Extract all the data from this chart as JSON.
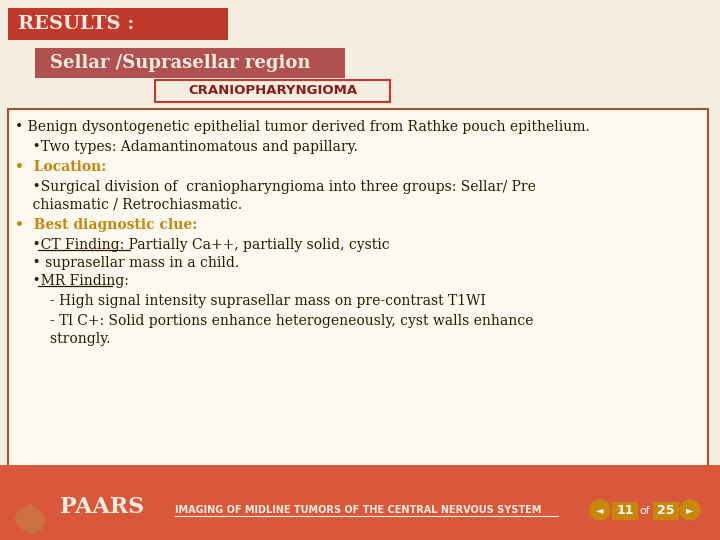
{
  "bg_color": "#f5ede0",
  "footer_color": "#d9573a",
  "title_bar_color": "#c0392b",
  "title_bar_text": "RESULTS :",
  "title_bar_text_color": "#f5ede0",
  "subtitle_bar_color": "#b05050",
  "subtitle_text": "Sellar /Suprasellar region",
  "subtitle_text_color": "#f5ede0",
  "tag_border_color": "#c0392b",
  "tag_bg_color": "#f5ede0",
  "tag_text": "CRANIOPHARYNGIOMA",
  "tag_text_color": "#8b1a1a",
  "content_border_color": "#a0522d",
  "content_bg_color": "#fdf8f0",
  "body_text_color": "#2c1a00",
  "highlight_color": "#c8860a",
  "footer_text": "IMAGING OF MIDLINE TUMORS OF THE CENTRAL NERVOUS SYSTEM",
  "footer_text_color": "#f5ede0",
  "paars_text_color": "#f5ede0",
  "page_num": "11",
  "page_total": "25"
}
